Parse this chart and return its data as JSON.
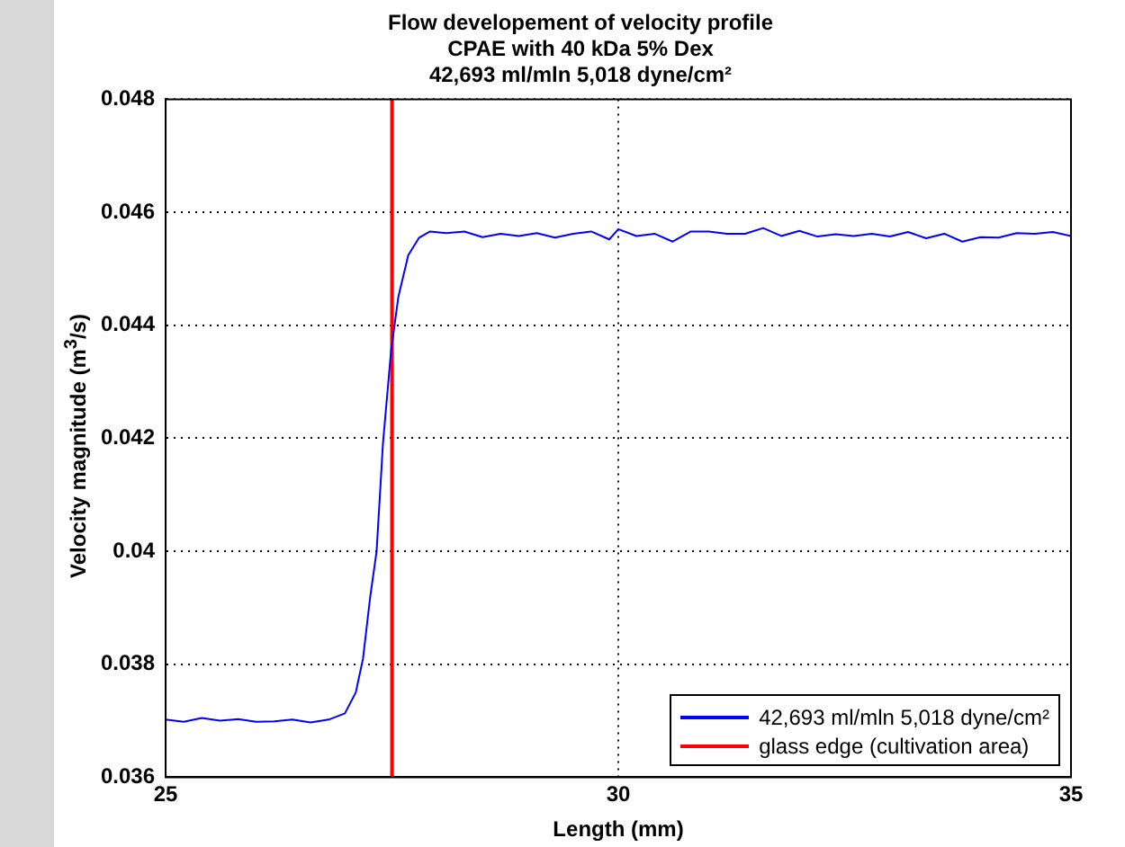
{
  "chart_data": {
    "type": "line",
    "title": [
      "Flow developement of velocity profile",
      "CPAE with 40 kDa 5% Dex",
      "42,693 ml/mln 5,018 dyne/cm²"
    ],
    "xlabel": "Length (mm)",
    "ylabel": "Velocity magnitude (m$^{3}$/s)",
    "xlim": [
      25,
      35
    ],
    "xticks": [
      25,
      30,
      35
    ],
    "ylim": [
      0.036,
      0.048
    ],
    "yticks": [
      0.036,
      0.038,
      0.04,
      0.042,
      0.044,
      0.046,
      0.048
    ],
    "grid": true,
    "legend": "bottom right",
    "line_style": "solid",
    "marker": "none",
    "series": [
      {
        "name": "42,693 ml/mln 5,018 dyne/cm²",
        "color": "#0000ff",
        "x": [
          25,
          25.2,
          25.4,
          25.6,
          25.8,
          26,
          26.2,
          26.4,
          26.6,
          26.8,
          26.98,
          27.1,
          27.18,
          27.26,
          27.33,
          27.4,
          27.49,
          27.57,
          27.68,
          27.8,
          27.92,
          28.1,
          28.3,
          28.5,
          28.7,
          28.9,
          29.1,
          29.3,
          29.5,
          29.7,
          29.9,
          30.0,
          30.2,
          30.4,
          30.6,
          30.8,
          31.0,
          31.2,
          31.4,
          31.6,
          31.8,
          32.0,
          32.2,
          32.4,
          32.6,
          32.8,
          33.0,
          33.2,
          33.4,
          33.6,
          33.8,
          34.0,
          34.2,
          34.4,
          34.6,
          34.8,
          35
        ],
        "values": [
          0.03702,
          0.03698,
          0.03705,
          0.037,
          0.03703,
          0.03698,
          0.03699,
          0.03702,
          0.03697,
          0.03702,
          0.03713,
          0.0375,
          0.0381,
          0.0392,
          0.04,
          0.0419,
          0.04355,
          0.0445,
          0.04524,
          0.04555,
          0.04566,
          0.04563,
          0.04566,
          0.04556,
          0.04562,
          0.04558,
          0.04563,
          0.04555,
          0.04562,
          0.04566,
          0.04552,
          0.0457,
          0.04558,
          0.04562,
          0.04548,
          0.04566,
          0.04566,
          0.04562,
          0.04562,
          0.04572,
          0.04558,
          0.04567,
          0.04557,
          0.04561,
          0.04558,
          0.04562,
          0.04557,
          0.04565,
          0.04554,
          0.04562,
          0.04548,
          0.04556,
          0.04555,
          0.04563,
          0.04562,
          0.04565,
          0.04558
        ]
      },
      {
        "name": "glass edge (cultivation area)",
        "color": "#ff0000",
        "x": [
          27.5,
          27.5
        ],
        "values": [
          0.036,
          0.048
        ]
      }
    ]
  }
}
